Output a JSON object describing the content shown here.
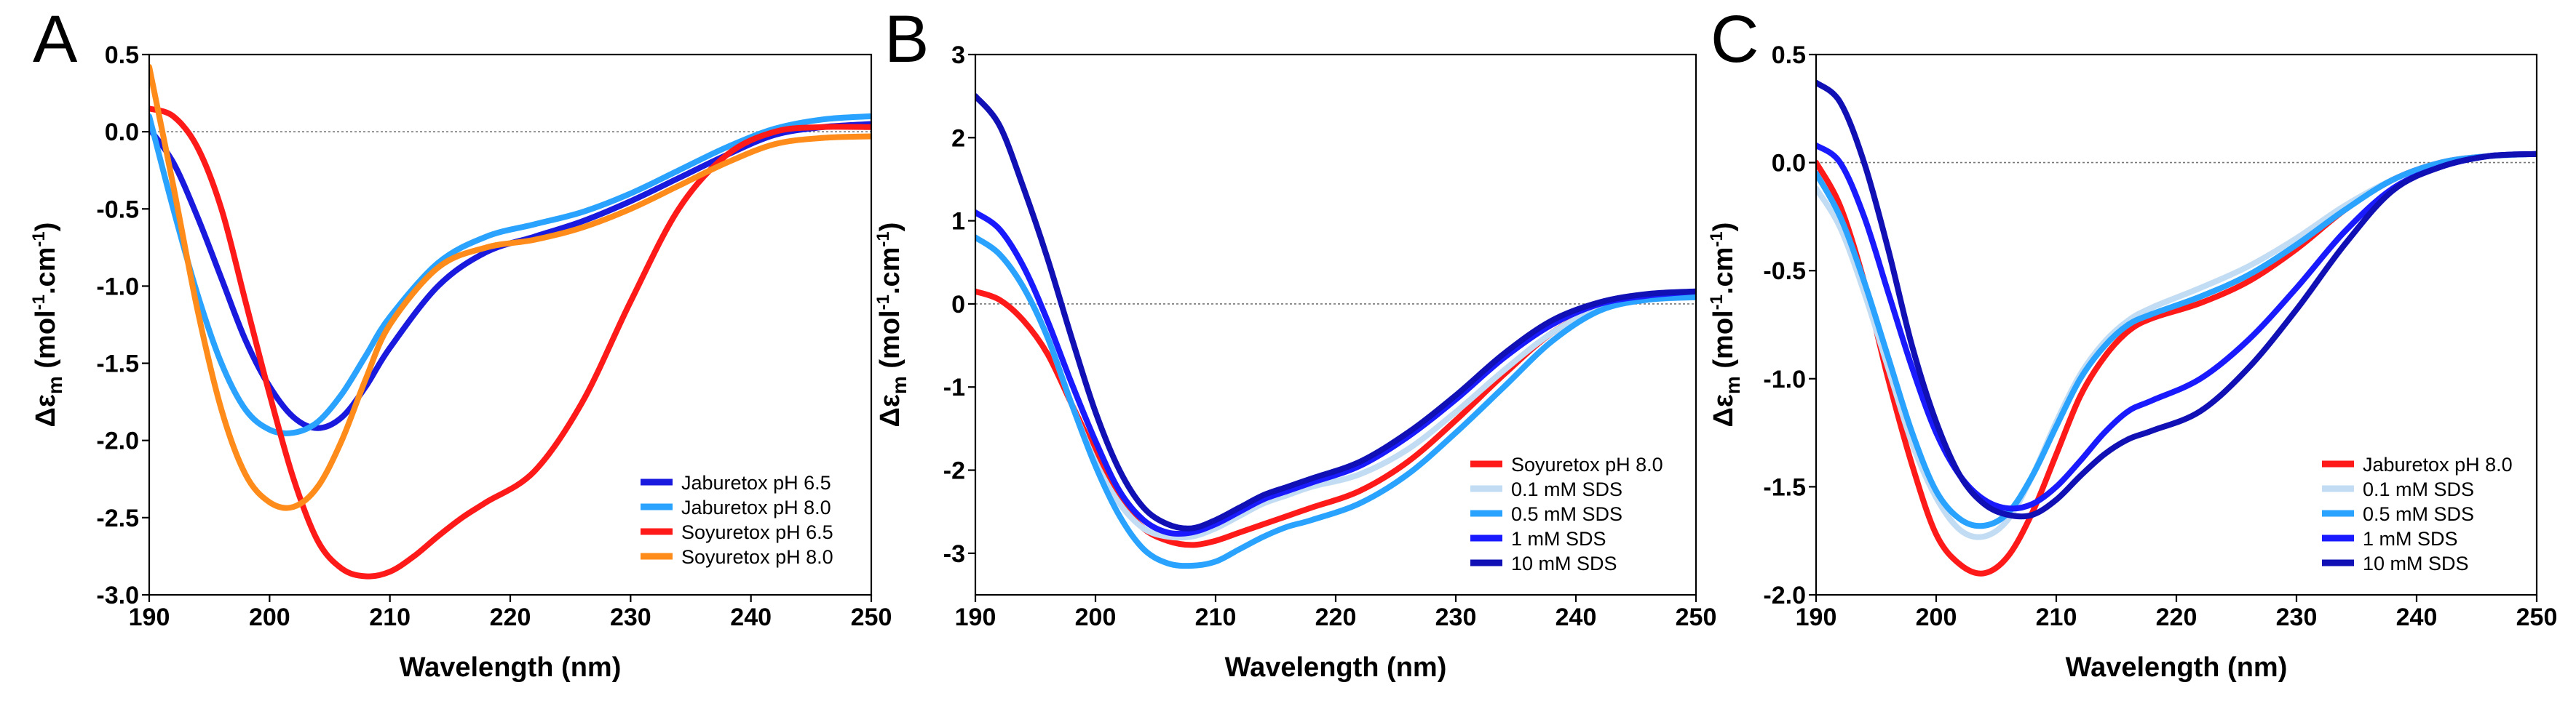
{
  "colors": {
    "red": "#ff1a1a",
    "orange": "#ff8c1a",
    "blue_dark": "#1a1adf",
    "blue_medium": "#1a1aff",
    "blue_light": "#29a3ff",
    "blue_pale": "#c2dcf4",
    "navy": "#1010b4"
  },
  "chart_data": [
    {
      "panel": "A",
      "type": "line",
      "xlabel": "Wavelength (nm)",
      "ylabel": "Δε",
      "ylabel_sub": "m",
      "ylabel_unit": "(mol-1.cm-1)",
      "xlim": [
        190,
        250
      ],
      "ylim": [
        -3.0,
        0.5
      ],
      "xticks": [
        190,
        200,
        210,
        220,
        230,
        240,
        250
      ],
      "yticks": [
        "0.5",
        "0.0",
        "-0.5",
        "-1.0",
        "-1.5",
        "-2.0",
        "-2.5",
        "-3.0"
      ],
      "legend_position": "bottom-right",
      "series": [
        {
          "name": "Jaburetox pH 6.5",
          "color": "#1a1adf",
          "x": [
            190,
            192,
            194,
            196,
            198,
            200,
            202,
            204,
            206,
            208,
            210,
            214,
            218,
            222,
            226,
            230,
            234,
            238,
            242,
            246,
            250
          ],
          "y": [
            0.02,
            -0.2,
            -0.55,
            -0.95,
            -1.35,
            -1.65,
            -1.85,
            -1.92,
            -1.85,
            -1.65,
            -1.4,
            -1.0,
            -0.78,
            -0.68,
            -0.58,
            -0.45,
            -0.3,
            -0.15,
            -0.02,
            0.03,
            0.05
          ]
        },
        {
          "name": "Jaburetox pH 8.0",
          "color": "#29a3ff",
          "x": [
            190,
            192,
            194,
            196,
            198,
            200,
            202,
            204,
            206,
            208,
            210,
            214,
            218,
            222,
            226,
            230,
            234,
            238,
            242,
            246,
            250
          ],
          "y": [
            0.1,
            -0.5,
            -1.05,
            -1.5,
            -1.8,
            -1.93,
            -1.95,
            -1.88,
            -1.7,
            -1.45,
            -1.2,
            -0.85,
            -0.68,
            -0.6,
            -0.52,
            -0.4,
            -0.25,
            -0.1,
            0.02,
            0.08,
            0.1
          ]
        },
        {
          "name": "Soyuretox pH 6.5",
          "color": "#ff1a1a",
          "x": [
            190,
            192,
            194,
            196,
            198,
            200,
            202,
            204,
            206,
            208,
            210,
            212,
            214,
            216,
            218,
            222,
            226,
            230,
            234,
            238,
            242,
            246,
            250
          ],
          "y": [
            0.15,
            0.1,
            -0.1,
            -0.5,
            -1.1,
            -1.7,
            -2.25,
            -2.65,
            -2.83,
            -2.88,
            -2.85,
            -2.75,
            -2.62,
            -2.5,
            -2.4,
            -2.2,
            -1.75,
            -1.1,
            -0.5,
            -0.15,
            0.0,
            0.03,
            0.03
          ]
        },
        {
          "name": "Soyuretox pH 8.0",
          "color": "#ff8c1a",
          "x": [
            190,
            192,
            194,
            196,
            198,
            200,
            202,
            204,
            206,
            208,
            210,
            214,
            218,
            222,
            226,
            230,
            234,
            238,
            242,
            246,
            250
          ],
          "y": [
            0.42,
            -0.35,
            -1.15,
            -1.8,
            -2.22,
            -2.4,
            -2.43,
            -2.3,
            -2.0,
            -1.6,
            -1.25,
            -0.88,
            -0.75,
            -0.7,
            -0.62,
            -0.5,
            -0.35,
            -0.2,
            -0.08,
            -0.04,
            -0.03
          ]
        }
      ]
    },
    {
      "panel": "B",
      "type": "line",
      "xlabel": "Wavelength (nm)",
      "ylabel": "Δε",
      "ylabel_sub": "m",
      "ylabel_unit": "(mol-1.cm-1)",
      "xlim": [
        190,
        250
      ],
      "ylim": [
        -3.5,
        3.0
      ],
      "xticks": [
        190,
        200,
        210,
        220,
        230,
        240,
        250
      ],
      "yticks": [
        "3",
        "2",
        "1",
        "0",
        "-1",
        "-2",
        "-3"
      ],
      "legend_position": "bottom-right",
      "series": [
        {
          "name": "Soyuretox pH 8.0",
          "color": "#ff1a1a",
          "x": [
            190,
            192,
            194,
            196,
            198,
            200,
            202,
            204,
            206,
            208,
            210,
            212,
            214,
            216,
            218,
            222,
            226,
            230,
            234,
            238,
            242,
            246,
            250
          ],
          "y": [
            0.15,
            0.05,
            -0.2,
            -0.6,
            -1.2,
            -1.8,
            -2.35,
            -2.7,
            -2.85,
            -2.9,
            -2.85,
            -2.75,
            -2.65,
            -2.55,
            -2.45,
            -2.25,
            -1.9,
            -1.4,
            -0.85,
            -0.35,
            -0.05,
            0.08,
            0.12
          ]
        },
        {
          "name": "0.1 mM SDS",
          "color": "#c2dcf4",
          "x": [
            190,
            192,
            194,
            196,
            198,
            200,
            202,
            204,
            206,
            208,
            210,
            212,
            214,
            216,
            218,
            222,
            226,
            230,
            234,
            238,
            242,
            246,
            250
          ],
          "y": [
            0.8,
            0.6,
            0.2,
            -0.4,
            -1.2,
            -1.9,
            -2.4,
            -2.7,
            -2.8,
            -2.8,
            -2.7,
            -2.55,
            -2.4,
            -2.3,
            -2.2,
            -2.05,
            -1.75,
            -1.3,
            -0.8,
            -0.35,
            -0.05,
            0.05,
            0.08
          ]
        },
        {
          "name": "0.5 mM SDS",
          "color": "#29a3ff",
          "x": [
            190,
            192,
            194,
            196,
            198,
            200,
            202,
            204,
            206,
            208,
            210,
            212,
            214,
            216,
            218,
            222,
            226,
            230,
            234,
            238,
            242,
            246,
            250
          ],
          "y": [
            0.8,
            0.6,
            0.2,
            -0.4,
            -1.2,
            -1.95,
            -2.55,
            -2.95,
            -3.12,
            -3.15,
            -3.1,
            -2.95,
            -2.8,
            -2.68,
            -2.6,
            -2.4,
            -2.05,
            -1.55,
            -1.0,
            -0.45,
            -0.08,
            0.05,
            0.08
          ]
        },
        {
          "name": "1 mM  SDS",
          "color": "#1a1aff",
          "x": [
            190,
            192,
            194,
            196,
            198,
            200,
            202,
            204,
            206,
            208,
            210,
            212,
            214,
            216,
            218,
            222,
            226,
            230,
            234,
            238,
            242,
            246,
            250
          ],
          "y": [
            1.1,
            0.9,
            0.45,
            -0.2,
            -0.95,
            -1.65,
            -2.25,
            -2.6,
            -2.75,
            -2.75,
            -2.65,
            -2.5,
            -2.35,
            -2.25,
            -2.15,
            -1.95,
            -1.6,
            -1.15,
            -0.65,
            -0.25,
            0.0,
            0.1,
            0.15
          ]
        },
        {
          "name": "10 mM SDS",
          "color": "#1010b4",
          "x": [
            190,
            192,
            194,
            196,
            198,
            200,
            202,
            204,
            206,
            208,
            210,
            212,
            214,
            216,
            218,
            222,
            226,
            230,
            234,
            238,
            242,
            246,
            250
          ],
          "y": [
            2.5,
            2.15,
            1.4,
            0.55,
            -0.4,
            -1.3,
            -2.0,
            -2.45,
            -2.65,
            -2.7,
            -2.6,
            -2.45,
            -2.3,
            -2.2,
            -2.1,
            -1.9,
            -1.55,
            -1.1,
            -0.6,
            -0.2,
            0.02,
            0.12,
            0.15
          ]
        }
      ]
    },
    {
      "panel": "C",
      "type": "line",
      "xlabel": "Wavelength (nm)",
      "ylabel": "Δε",
      "ylabel_sub": "m",
      "ylabel_unit": "(mol-1.cm-1)",
      "xlim": [
        190,
        250
      ],
      "ylim": [
        -2.0,
        0.5
      ],
      "xticks": [
        190,
        200,
        210,
        220,
        230,
        240,
        250
      ],
      "yticks": [
        "0.5",
        "0.0",
        "-0.5",
        "-1.0",
        "-1.5",
        "-2.0"
      ],
      "legend_position": "bottom-right",
      "series": [
        {
          "name": "Jaburetox pH 8.0",
          "color": "#ff1a1a",
          "x": [
            190,
            192,
            194,
            196,
            198,
            200,
            202,
            204,
            206,
            208,
            210,
            212,
            214,
            216,
            218,
            222,
            226,
            230,
            234,
            238,
            242,
            246,
            250
          ],
          "y": [
            0.0,
            -0.2,
            -0.55,
            -1.0,
            -1.4,
            -1.72,
            -1.86,
            -1.9,
            -1.82,
            -1.62,
            -1.35,
            -1.08,
            -0.9,
            -0.78,
            -0.72,
            -0.65,
            -0.55,
            -0.4,
            -0.22,
            -0.08,
            0.0,
            0.03,
            0.04
          ]
        },
        {
          "name": "0.1 mM SDS",
          "color": "#c2dcf4",
          "x": [
            190,
            192,
            194,
            196,
            198,
            200,
            202,
            204,
            206,
            208,
            210,
            212,
            214,
            216,
            218,
            222,
            226,
            230,
            234,
            238,
            242,
            246,
            250
          ],
          "y": [
            -0.12,
            -0.3,
            -0.6,
            -0.95,
            -1.3,
            -1.55,
            -1.7,
            -1.73,
            -1.65,
            -1.45,
            -1.2,
            -0.98,
            -0.83,
            -0.73,
            -0.67,
            -0.58,
            -0.48,
            -0.35,
            -0.2,
            -0.08,
            0.0,
            0.03,
            0.04
          ]
        },
        {
          "name": "0.5 mM SDS",
          "color": "#29a3ff",
          "x": [
            190,
            192,
            194,
            196,
            198,
            200,
            202,
            204,
            206,
            208,
            210,
            212,
            214,
            216,
            218,
            222,
            226,
            230,
            234,
            238,
            242,
            246,
            250
          ],
          "y": [
            -0.05,
            -0.25,
            -0.55,
            -0.9,
            -1.25,
            -1.52,
            -1.65,
            -1.68,
            -1.62,
            -1.45,
            -1.22,
            -1.0,
            -0.85,
            -0.75,
            -0.7,
            -0.62,
            -0.52,
            -0.38,
            -0.22,
            -0.08,
            0.0,
            0.03,
            0.04
          ]
        },
        {
          "name": "1 mM  SDS",
          "color": "#1a1aff",
          "x": [
            190,
            192,
            194,
            196,
            198,
            200,
            202,
            204,
            206,
            208,
            210,
            212,
            214,
            216,
            218,
            222,
            226,
            230,
            234,
            238,
            242,
            246,
            250
          ],
          "y": [
            0.08,
            0.0,
            -0.25,
            -0.6,
            -0.95,
            -1.25,
            -1.45,
            -1.56,
            -1.6,
            -1.58,
            -1.5,
            -1.38,
            -1.25,
            -1.15,
            -1.1,
            -1.0,
            -0.82,
            -0.58,
            -0.32,
            -0.12,
            -0.02,
            0.03,
            0.04
          ]
        },
        {
          "name": "10 mM SDS",
          "color": "#1010b4",
          "x": [
            190,
            192,
            194,
            196,
            198,
            200,
            202,
            204,
            206,
            208,
            210,
            212,
            214,
            216,
            218,
            222,
            226,
            230,
            234,
            238,
            242,
            246,
            250
          ],
          "y": [
            0.37,
            0.28,
            0.0,
            -0.4,
            -0.85,
            -1.2,
            -1.45,
            -1.58,
            -1.63,
            -1.63,
            -1.56,
            -1.45,
            -1.35,
            -1.28,
            -1.24,
            -1.15,
            -0.95,
            -0.68,
            -0.38,
            -0.13,
            -0.02,
            0.03,
            0.04
          ]
        }
      ]
    }
  ]
}
